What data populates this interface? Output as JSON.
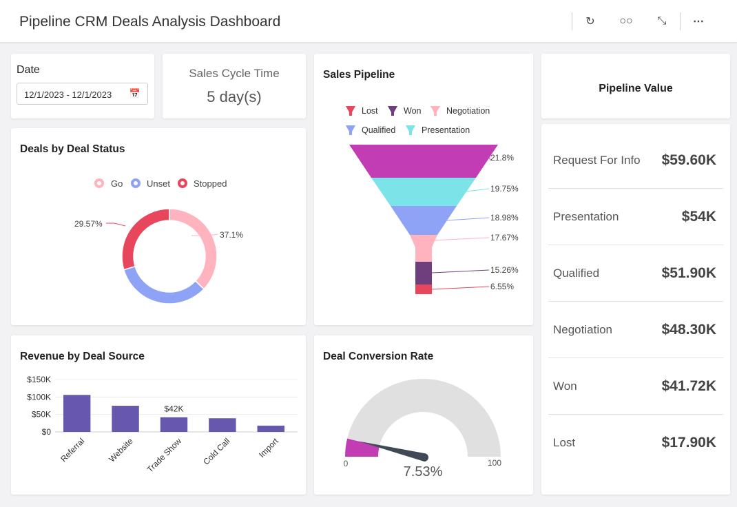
{
  "header": {
    "title": "Pipeline CRM Deals Analysis Dashboard",
    "icons": [
      "refresh-icon",
      "view-icon",
      "expand-icon",
      "more-icon"
    ]
  },
  "date": {
    "label": "Date",
    "value": "12/1/2023 - 12/1/2023"
  },
  "sales_cycle": {
    "label": "Sales Cycle Time",
    "value": "5 day(s)"
  },
  "deal_status": {
    "title": "Deals by Deal Status",
    "legend": [
      "Go",
      "Unset",
      "Stopped"
    ],
    "labels": [
      "37.1%",
      "29.57%"
    ]
  },
  "revenue": {
    "title": "Revenue by Deal Source",
    "data_label": "$42K"
  },
  "pipeline": {
    "title": "Sales Pipeline",
    "legend": [
      "Lost",
      "Won",
      "Negotiation",
      "Qualified",
      "Presentation"
    ],
    "labels": [
      "21.8%",
      "19.75%",
      "18.98%",
      "17.67%",
      "15.26%",
      "6.55%"
    ]
  },
  "conversion": {
    "title": "Deal Conversion Rate",
    "min": "0",
    "max": "100",
    "value_label": "7.53%"
  },
  "pipeline_value": {
    "title": "Pipeline Value",
    "rows": [
      {
        "label": "Request For Info",
        "value": "$59.60K"
      },
      {
        "label": "Presentation",
        "value": "$54K"
      },
      {
        "label": "Qualified",
        "value": "$51.90K"
      },
      {
        "label": "Negotiation",
        "value": "$48.30K"
      },
      {
        "label": "Won",
        "value": "$41.72K"
      },
      {
        "label": "Lost",
        "value": "$17.90K"
      }
    ]
  },
  "chart_data": [
    {
      "type": "pie",
      "title": "Deals by Deal Status",
      "categories": [
        "Go",
        "Unset",
        "Stopped"
      ],
      "values": [
        37.1,
        33.33,
        29.57
      ],
      "colors": [
        "#ffb3bf",
        "#8ea3f5",
        "#e8465c"
      ]
    },
    {
      "type": "bar",
      "title": "Revenue by Deal Source",
      "categories": [
        "Referral",
        "Website",
        "Trade Show",
        "Cold Call",
        "Import"
      ],
      "values": [
        106000,
        75000,
        42000,
        39000,
        18000
      ],
      "yticks": [
        "$0",
        "$50K",
        "$100K",
        "$150K"
      ],
      "ylim": [
        0,
        150000
      ],
      "color": "#6757ad"
    },
    {
      "type": "funnel",
      "title": "Sales Pipeline",
      "values": [
        21.8,
        19.75,
        18.98,
        17.67,
        15.26,
        6.55
      ],
      "colors": [
        "#c23cb4",
        "#7ce3e8",
        "#8ea3f5",
        "#ffb3bf",
        "#6e3f7c",
        "#e8465c"
      ]
    },
    {
      "type": "gauge",
      "title": "Deal Conversion Rate",
      "value": 7.53,
      "range": [
        0,
        100
      ],
      "color": "#c23cb4"
    }
  ]
}
